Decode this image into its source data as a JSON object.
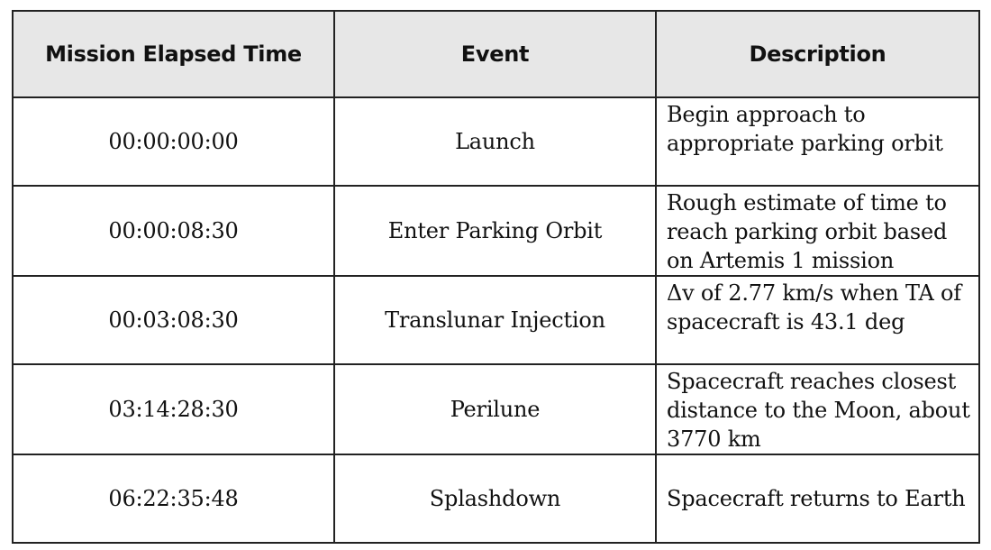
{
  "table": {
    "headers": [
      "Mission Elapsed Time",
      "Event",
      "Description"
    ],
    "rows": [
      {
        "time": "00:00:00:00",
        "event": "Launch",
        "description": [
          "Begin approach to",
          "appropriate parking orbit"
        ]
      },
      {
        "time": "00:00:08:30",
        "event": "Enter Parking Orbit",
        "description": [
          "Rough estimate of time to",
          "reach parking orbit based",
          "on Artemis 1 mission"
        ]
      },
      {
        "time": "00:03:08:30",
        "event": "Translunar Injection",
        "description": [
          "Δv of 2.77 km/s when TA of",
          "spacecraft is 43.1 deg"
        ]
      },
      {
        "time": "03:14:28:30",
        "event": "Perilune",
        "description": [
          "Spacecraft reaches closest",
          "distance to the Moon, about",
          "3770 km"
        ]
      },
      {
        "time": "06:22:35:48",
        "event": "Splashdown",
        "description": [
          "Spacecraft returns to Earth"
        ]
      }
    ]
  }
}
